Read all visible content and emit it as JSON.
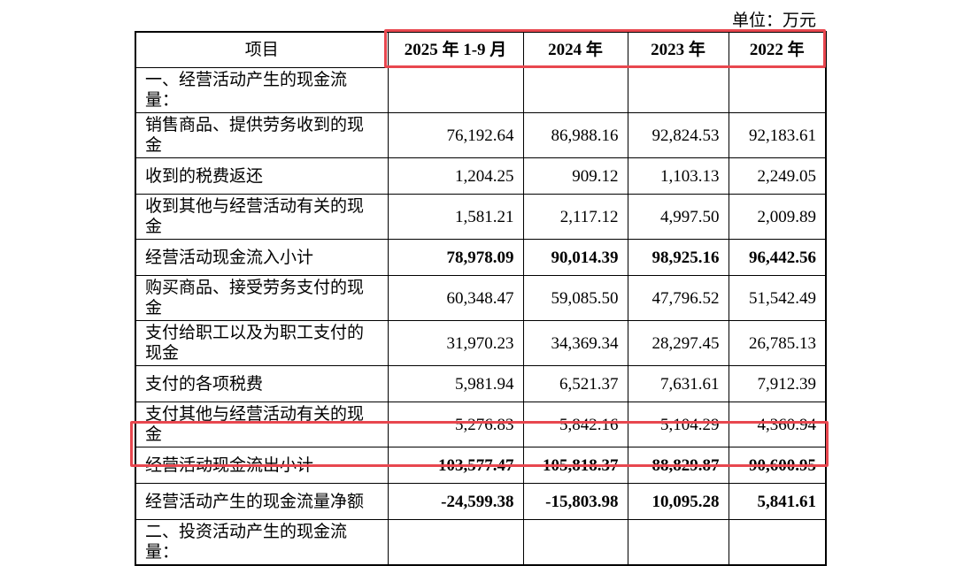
{
  "unit": "单位：万元",
  "table": {
    "header": [
      "项目",
      "2025 年 1-9 月",
      "2024 年",
      "2023 年",
      "2022 年"
    ],
    "rows": [
      {
        "cells": [
          "一、经营活动产生的现金流量："
        ]
      },
      {
        "cells": [
          "销售商品、提供劳务收到的现金",
          "76,192.64",
          "86,988.16",
          "92,824.53",
          "92,183.61"
        ]
      },
      {
        "cells": [
          "收到的税费返还",
          "1,204.25",
          "909.12",
          "1,103.13",
          "2,249.05"
        ]
      },
      {
        "cells": [
          "收到其他与经营活动有关的现金",
          "1,581.21",
          "2,117.12",
          "4,997.50",
          "2,009.89"
        ]
      },
      {
        "cells": [
          "经营活动现金流入小计",
          "78,978.09",
          "90,014.39",
          "98,925.16",
          "96,442.56"
        ],
        "bold": true
      },
      {
        "cells": [
          "购买商品、接受劳务支付的现金",
          "60,348.47",
          "59,085.50",
          "47,796.52",
          "51,542.49"
        ]
      },
      {
        "cells": [
          "支付给职工以及为职工支付的现金",
          "31,970.23",
          "34,369.34",
          "28,297.45",
          "26,785.13"
        ]
      },
      {
        "cells": [
          "支付的各项税费",
          "5,981.94",
          "6,521.37",
          "7,631.61",
          "7,912.39"
        ]
      },
      {
        "cells": [
          "支付其他与经营活动有关的现金",
          "5,276.83",
          "5,842.16",
          "5,104.29",
          "4,360.94"
        ]
      },
      {
        "cells": [
          "经营活动现金流出小计",
          "103,577.47",
          "105,818.37",
          "88,829.87",
          "90,600.95"
        ],
        "bold": true
      },
      {
        "cells": [
          "经营活动产生的现金流量净额",
          "-24,599.38",
          "-15,803.98",
          "10,095.28",
          "5,841.61"
        ],
        "bold": true
      },
      {
        "cells": [
          "二、投资活动产生的现金流量："
        ]
      }
    ]
  }
}
